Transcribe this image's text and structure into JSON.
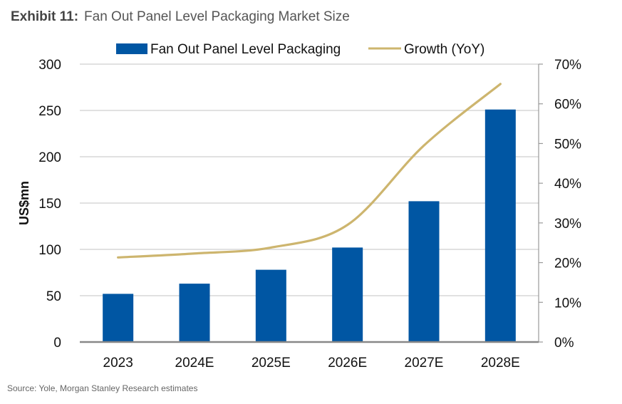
{
  "header": {
    "exhibit_label": "Exhibit 11:",
    "title": "Fan Out Panel Level Packaging Market Size"
  },
  "footer": {
    "source": "Source: Yole, Morgan Stanley Research estimates"
  },
  "chart_data": {
    "type": "bar",
    "title": "Fan Out Panel Level Packaging Market Size",
    "categories": [
      "2023",
      "2024E",
      "2025E",
      "2026E",
      "2027E",
      "2028E"
    ],
    "series": [
      {
        "name": "Fan Out Panel Level Packaging",
        "type": "bar",
        "axis": "left",
        "color": "#0056A3",
        "values": [
          52,
          63,
          78,
          102,
          152,
          251
        ]
      },
      {
        "name": "Growth (YoY)",
        "type": "line",
        "axis": "right",
        "color": "#CDB56E",
        "values": [
          21.3,
          22.3,
          23.8,
          29.5,
          49.5,
          65
        ]
      }
    ],
    "ylabel": "US$mn",
    "ylim": [
      0,
      300
    ],
    "yticks": [
      "0",
      "50",
      "100",
      "150",
      "200",
      "250",
      "300"
    ],
    "ytick_values": [
      0,
      50,
      100,
      150,
      200,
      250,
      300
    ],
    "y2lim": [
      0,
      70
    ],
    "y2ticks": [
      "0%",
      "10%",
      "20%",
      "30%",
      "40%",
      "50%",
      "60%",
      "70%"
    ],
    "y2tick_values": [
      0,
      10,
      20,
      30,
      40,
      50,
      60,
      70
    ],
    "grid": true,
    "legend": "top-center"
  }
}
